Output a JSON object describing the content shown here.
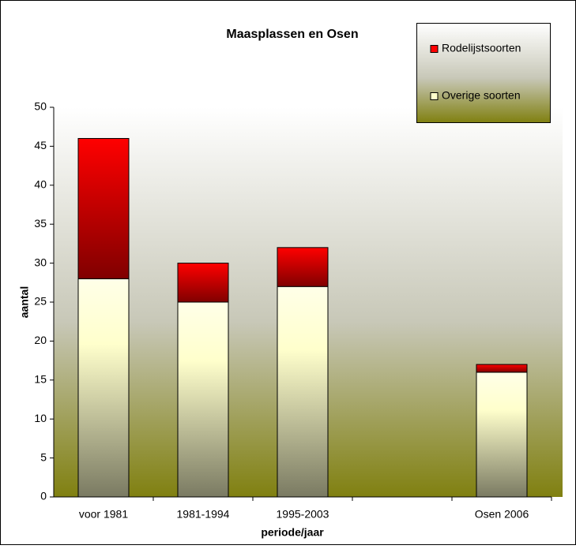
{
  "chart_data": {
    "type": "stacked_bar",
    "title": "Maasplassen en Osen",
    "x_label": "periode/jaar",
    "y_label": "aantal",
    "categories": [
      "voor 1981",
      "1981-1994",
      "1995-2003",
      null,
      "Osen 2006"
    ],
    "series": [
      {
        "name": "Overige soorten",
        "color": "#ffffcc",
        "values": [
          28,
          25,
          27,
          null,
          16
        ]
      },
      {
        "name": "Rodelijstsoorten",
        "color": "#ff0000",
        "values": [
          18,
          5,
          5,
          null,
          1
        ]
      }
    ],
    "ylim": [
      0,
      50
    ],
    "yticks": [
      0,
      5,
      10,
      15,
      20,
      25,
      30,
      35,
      40,
      45,
      50
    ],
    "legend": "top-right"
  }
}
